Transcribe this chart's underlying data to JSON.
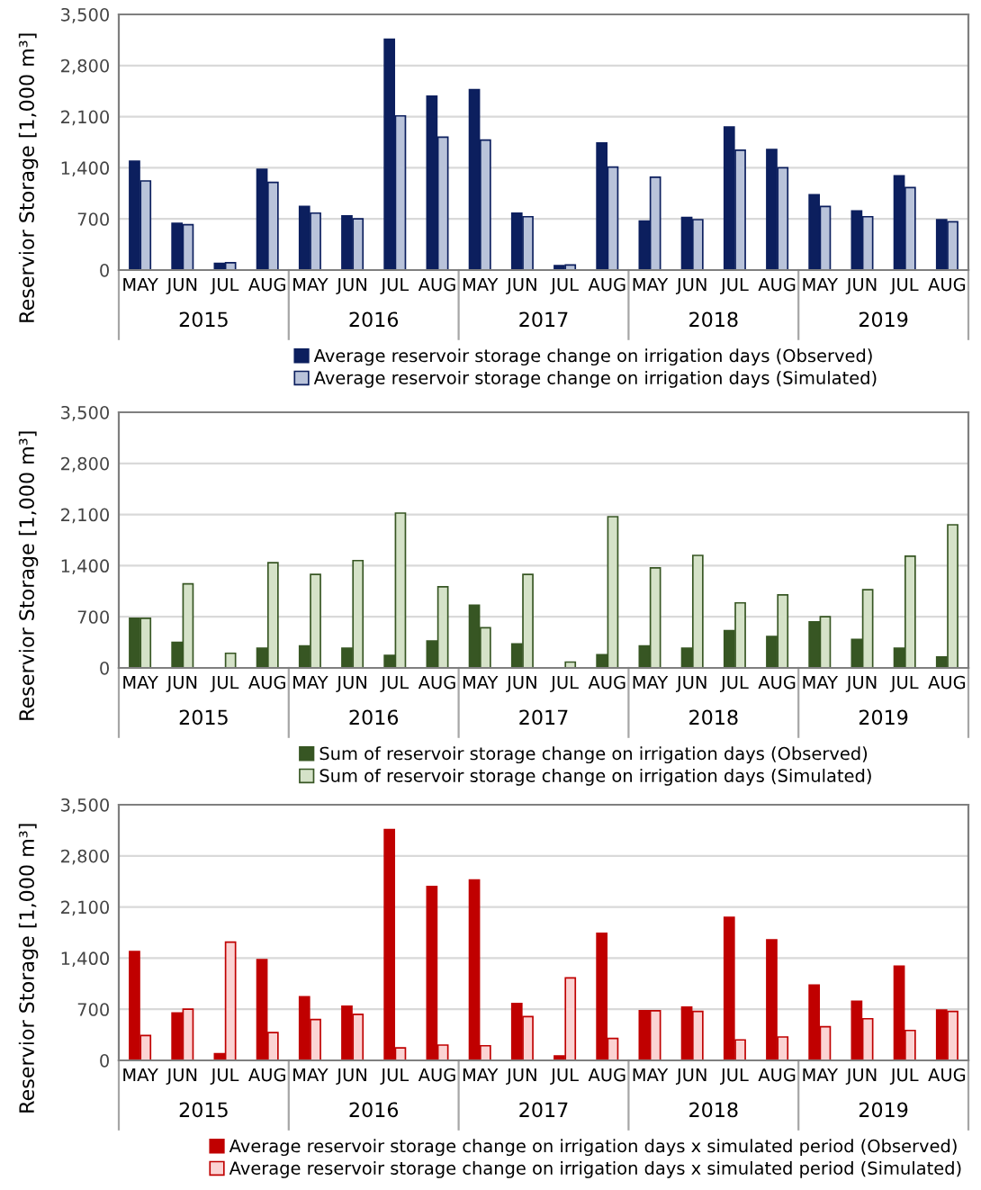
{
  "chart_data": [
    {
      "type": "bar",
      "ylabel": "Reservior Storage [1,000 m³]",
      "categories": [
        "MAY",
        "JUN",
        "JUL",
        "AUG",
        "MAY",
        "JUN",
        "JUL",
        "AUG",
        "MAY",
        "JUN",
        "JUL",
        "AUG",
        "MAY",
        "JUN",
        "JUL",
        "AUG",
        "MAY",
        "JUN",
        "JUL",
        "AUG"
      ],
      "annotations": [
        "2015",
        "2016",
        "2017",
        "2018",
        "2019"
      ],
      "ylim": [
        0,
        3500
      ],
      "yticks": [
        0,
        {
          "value": 700,
          "label": "700"
        },
        {
          "value": 1400,
          "label": "1,400"
        },
        {
          "value": 2100,
          "label": "2,100"
        },
        {
          "value": 2800,
          "label": "2,800"
        },
        {
          "value": 3500,
          "label": "3,500"
        }
      ],
      "grid": "y",
      "legend": "bottom",
      "series": [
        {
          "name": "Average reservoir storage change on irrigation days (Observed)",
          "color": "#0c1f5e",
          "values": [
            1490,
            640,
            90,
            1380,
            870,
            740,
            3160,
            2380,
            2470,
            780,
            60,
            1740,
            670,
            720,
            1960,
            1650,
            1030,
            810,
            1290,
            690
          ]
        },
        {
          "name": "Average reservoir storage change on irrigation days (Simulated)",
          "color": "#b9c3da",
          "values": [
            1220,
            620,
            100,
            1200,
            780,
            700,
            2110,
            1820,
            1780,
            730,
            70,
            1410,
            1270,
            690,
            1640,
            1400,
            870,
            730,
            1130,
            660
          ]
        }
      ]
    },
    {
      "type": "bar",
      "ylabel": "Reservior Storage [1,000 m³]",
      "categories": [
        "MAY",
        "JUN",
        "JUL",
        "AUG",
        "MAY",
        "JUN",
        "JUL",
        "AUG",
        "MAY",
        "JUN",
        "JUL",
        "AUG",
        "MAY",
        "JUN",
        "JUL",
        "AUG",
        "MAY",
        "JUN",
        "JUL",
        "AUG"
      ],
      "annotations": [
        "2015",
        "2016",
        "2017",
        "2018",
        "2019"
      ],
      "ylim": [
        0,
        3500
      ],
      "yticks": [
        0,
        {
          "value": 700,
          "label": "700"
        },
        {
          "value": 1400,
          "label": "1,400"
        },
        {
          "value": 2100,
          "label": "2,100"
        },
        {
          "value": 2800,
          "label": "2,800"
        },
        {
          "value": 3500,
          "label": "3,500"
        }
      ],
      "grid": "y",
      "legend": "bottom",
      "series": [
        {
          "name": "Sum of reservoir storage change on irrigation days (Observed)",
          "color": "#375623",
          "values": [
            680,
            350,
            0,
            270,
            300,
            270,
            170,
            370,
            860,
            330,
            0,
            180,
            300,
            270,
            510,
            430,
            630,
            390,
            270,
            150
          ]
        },
        {
          "name": "Sum of reservoir storage change on irrigation days (Simulated)",
          "color": "#d5e2c8",
          "values": [
            680,
            1150,
            200,
            1440,
            1280,
            1470,
            2120,
            1110,
            550,
            1280,
            80,
            2070,
            1370,
            1540,
            890,
            1000,
            700,
            1070,
            1530,
            1960
          ]
        }
      ]
    },
    {
      "type": "bar",
      "ylabel": "Reservior Storage [1,000 m³]",
      "categories": [
        "MAY",
        "JUN",
        "JUL",
        "AUG",
        "MAY",
        "JUN",
        "JUL",
        "AUG",
        "MAY",
        "JUN",
        "JUL",
        "AUG",
        "MAY",
        "JUN",
        "JUL",
        "AUG",
        "MAY",
        "JUN",
        "JUL",
        "AUG"
      ],
      "annotations": [
        "2015",
        "2016",
        "2017",
        "2018",
        "2019"
      ],
      "ylim": [
        0,
        3500
      ],
      "yticks": [
        0,
        {
          "value": 700,
          "label": "700"
        },
        {
          "value": 1400,
          "label": "1,400"
        },
        {
          "value": 2100,
          "label": "2,100"
        },
        {
          "value": 2800,
          "label": "2,800"
        },
        {
          "value": 3500,
          "label": "3,500"
        }
      ],
      "grid": "y",
      "legend": "bottom",
      "series": [
        {
          "name": "Average reservoir storage change on irrigation days x simulated period (Observed)",
          "color": "#c00000",
          "values": [
            1490,
            650,
            90,
            1380,
            870,
            740,
            3160,
            2380,
            2470,
            780,
            60,
            1740,
            680,
            730,
            1960,
            1650,
            1030,
            810,
            1290,
            690
          ]
        },
        {
          "name": "Average reservoir storage change on irrigation days x simulated period (Simulated)",
          "color": "#fbd3d3",
          "values": [
            340,
            700,
            1620,
            380,
            560,
            630,
            170,
            210,
            200,
            600,
            1130,
            300,
            680,
            670,
            280,
            320,
            460,
            570,
            410,
            670
          ]
        }
      ]
    }
  ]
}
